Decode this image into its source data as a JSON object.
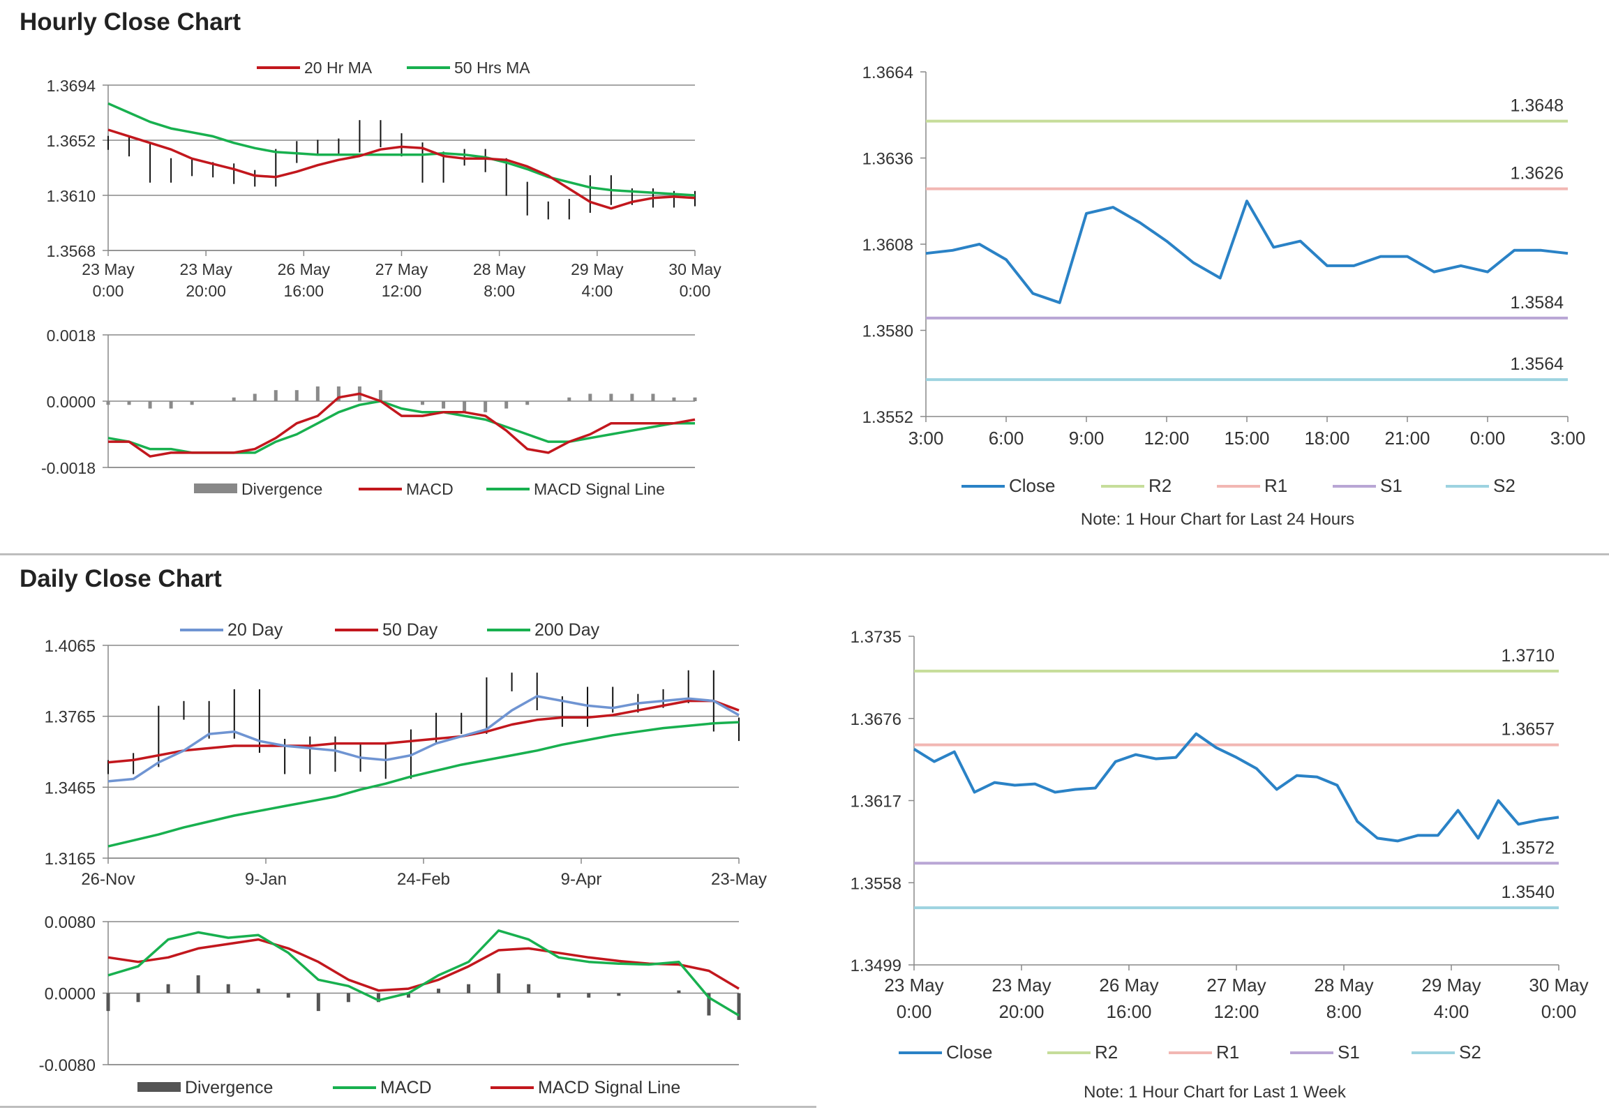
{
  "sections": {
    "hourly_title": "Hourly Close Chart",
    "daily_title": "Daily Close Chart"
  },
  "colors": {
    "close": "#2a82c6",
    "r2": "#c6dd9a",
    "r1": "#f2b7b3",
    "s1": "#b9a6d5",
    "s2": "#9dd3e0",
    "red": "#c2171d",
    "green": "#18b04f",
    "blue": "#6f94d2",
    "grid": "#888888"
  },
  "chart_data": [
    {
      "id": "hourly-price",
      "type": "line",
      "legend": [
        "20 Hr MA",
        "50 Hrs MA"
      ],
      "yticks": [
        "1.3694",
        "1.3652",
        "1.3610",
        "1.3568"
      ],
      "ylim": [
        1.3568,
        1.3694
      ],
      "xticks": [
        [
          "23 May",
          "0:00"
        ],
        [
          "23 May",
          "20:00"
        ],
        [
          "26 May",
          "16:00"
        ],
        [
          "27 May",
          "12:00"
        ],
        [
          "28 May",
          "8:00"
        ],
        [
          "29 May",
          "4:00"
        ],
        [
          "30 May",
          "0:00"
        ]
      ],
      "series": [
        {
          "name": "20 Hr MA",
          "color": "red",
          "values": [
            1.366,
            1.3655,
            1.365,
            1.3645,
            1.3638,
            1.3634,
            1.363,
            1.3625,
            1.3624,
            1.3628,
            1.3633,
            1.3637,
            1.364,
            1.3645,
            1.3647,
            1.3646,
            1.364,
            1.3638,
            1.3638,
            1.3637,
            1.3632,
            1.3625,
            1.3615,
            1.3605,
            1.36,
            1.3605,
            1.3608,
            1.3609,
            1.3608
          ]
        },
        {
          "name": "50 Hrs MA",
          "color": "green",
          "values": [
            1.368,
            1.3673,
            1.3666,
            1.3661,
            1.3658,
            1.3655,
            1.365,
            1.3646,
            1.3643,
            1.3642,
            1.3641,
            1.3641,
            1.3641,
            1.3641,
            1.3641,
            1.3641,
            1.3642,
            1.3641,
            1.3639,
            1.3635,
            1.363,
            1.3624,
            1.362,
            1.3616,
            1.3614,
            1.3613,
            1.3612,
            1.3611,
            1.361
          ]
        },
        {
          "name": "Close",
          "color": "black",
          "values": [
            1.365,
            1.3645,
            1.3625,
            1.3633,
            1.363,
            1.3629,
            1.3624,
            1.3622,
            1.364,
            1.3646,
            1.3647,
            1.3648,
            1.3662,
            1.3652,
            1.3645,
            1.3625,
            1.3638,
            1.364,
            1.3633,
            1.3615,
            1.36,
            1.3597,
            1.3602,
            1.362,
            1.3608,
            1.361,
            1.3606,
            1.3608,
            1.3607
          ]
        }
      ]
    },
    {
      "id": "hourly-macd",
      "type": "line",
      "legend": [
        "Divergence",
        "MACD",
        "MACD Signal Line"
      ],
      "yticks": [
        "0.0018",
        "0.0000",
        "-0.0018"
      ],
      "ylim": [
        -0.0018,
        0.0018
      ],
      "series": [
        {
          "name": "MACD",
          "color": "red",
          "values": [
            -0.0011,
            -0.0011,
            -0.0015,
            -0.0014,
            -0.0014,
            -0.0014,
            -0.0014,
            -0.0013,
            -0.001,
            -0.0006,
            -0.0004,
            0.0001,
            0.0002,
            0.0,
            -0.0004,
            -0.0004,
            -0.0003,
            -0.0003,
            -0.0004,
            -0.0008,
            -0.0013,
            -0.0014,
            -0.0011,
            -0.0009,
            -0.0006,
            -0.0006,
            -0.0006,
            -0.0006,
            -0.0005
          ]
        },
        {
          "name": "MACD Signal Line",
          "color": "green",
          "values": [
            -0.001,
            -0.0011,
            -0.0013,
            -0.0013,
            -0.0014,
            -0.0014,
            -0.0014,
            -0.0014,
            -0.0011,
            -0.0009,
            -0.0006,
            -0.0003,
            -0.0001,
            0.0,
            -0.0002,
            -0.0003,
            -0.0003,
            -0.0004,
            -0.0005,
            -0.0007,
            -0.0009,
            -0.0011,
            -0.0011,
            -0.001,
            -0.0009,
            -0.0008,
            -0.0007,
            -0.0006,
            -0.0006
          ]
        },
        {
          "name": "Divergence",
          "color": "gray",
          "values": [
            -0.0001,
            -0.0001,
            -0.0002,
            -0.0002,
            -0.0001,
            0.0,
            0.0001,
            0.0002,
            0.0003,
            0.0003,
            0.0004,
            0.0004,
            0.0004,
            0.0003,
            0.0,
            -0.0001,
            -0.0002,
            -0.0003,
            -0.0003,
            -0.0002,
            -0.0001,
            0.0,
            0.0001,
            0.0002,
            0.0002,
            0.0002,
            0.0002,
            0.0001,
            0.0001
          ]
        }
      ]
    },
    {
      "id": "hourly-pivot",
      "type": "line",
      "yticks": [
        "1.3664",
        "1.3636",
        "1.3608",
        "1.3580",
        "1.3552"
      ],
      "ylim": [
        1.3552,
        1.3664
      ],
      "xticks": [
        "3:00",
        "6:00",
        "9:00",
        "12:00",
        "15:00",
        "18:00",
        "21:00",
        "0:00",
        "3:00"
      ],
      "levels": [
        {
          "name": "R2",
          "value": 1.3648,
          "label": "1.3648"
        },
        {
          "name": "R1",
          "value": 1.3626,
          "label": "1.3626"
        },
        {
          "name": "S1",
          "value": 1.3584,
          "label": "1.3584"
        },
        {
          "name": "S2",
          "value": 1.3564,
          "label": "1.3564"
        }
      ],
      "series": [
        {
          "name": "Close",
          "color": "close",
          "values": [
            1.3605,
            1.3606,
            1.3608,
            1.3603,
            1.3592,
            1.3589,
            1.3618,
            1.362,
            1.3615,
            1.3609,
            1.3602,
            1.3597,
            1.3622,
            1.3607,
            1.3609,
            1.3601,
            1.3601,
            1.3604,
            1.3604,
            1.3599,
            1.3601,
            1.3599,
            1.3606,
            1.3606,
            1.3605
          ]
        }
      ],
      "legend": [
        "Close",
        "R2",
        "R1",
        "S1",
        "S2"
      ],
      "note": "Note: 1 Hour Chart for Last 24 Hours"
    },
    {
      "id": "daily-price",
      "type": "line",
      "legend": [
        "20 Day",
        "50 Day",
        "200 Day"
      ],
      "yticks": [
        "1.4065",
        "1.3765",
        "1.3465",
        "1.3165"
      ],
      "ylim": [
        1.3165,
        1.4065
      ],
      "xticks": [
        "26-Nov",
        "9-Jan",
        "24-Feb",
        "9-Apr",
        "23-May"
      ],
      "series": [
        {
          "name": "20 Day",
          "color": "blue",
          "values": [
            1.349,
            1.35,
            1.357,
            1.362,
            1.369,
            1.37,
            1.366,
            1.364,
            1.363,
            1.362,
            1.359,
            1.358,
            1.36,
            1.365,
            1.368,
            1.371,
            1.379,
            1.385,
            1.383,
            1.381,
            1.38,
            1.382,
            1.383,
            1.384,
            1.383,
            1.377
          ]
        },
        {
          "name": "50 Day",
          "color": "red",
          "values": [
            1.357,
            1.358,
            1.36,
            1.362,
            1.363,
            1.364,
            1.364,
            1.364,
            1.364,
            1.365,
            1.365,
            1.365,
            1.366,
            1.367,
            1.368,
            1.37,
            1.373,
            1.375,
            1.376,
            1.376,
            1.377,
            1.379,
            1.381,
            1.383,
            1.383,
            1.379
          ]
        },
        {
          "name": "200 Day",
          "color": "green",
          "values": [
            1.3215,
            1.324,
            1.3265,
            1.3295,
            1.332,
            1.3345,
            1.3365,
            1.3385,
            1.3405,
            1.3425,
            1.3455,
            1.348,
            1.351,
            1.3535,
            1.356,
            1.358,
            1.36,
            1.362,
            1.3645,
            1.3665,
            1.3685,
            1.37,
            1.3715,
            1.3725,
            1.3735,
            1.374
          ]
        },
        {
          "name": "Close",
          "color": "black",
          "values": [
            1.355,
            1.358,
            1.378,
            1.38,
            1.37,
            1.385,
            1.364,
            1.355,
            1.365,
            1.356,
            1.362,
            1.353,
            1.368,
            1.375,
            1.372,
            1.39,
            1.392,
            1.382,
            1.375,
            1.386,
            1.381,
            1.383,
            1.385,
            1.393,
            1.373,
            1.369
          ]
        }
      ]
    },
    {
      "id": "daily-macd",
      "type": "line",
      "legend": [
        "Divergence",
        "MACD",
        "MACD Signal Line"
      ],
      "yticks": [
        "0.0080",
        "0.0000",
        "-0.0080"
      ],
      "ylim": [
        -0.008,
        0.008
      ],
      "series": [
        {
          "name": "MACD",
          "color": "green",
          "values": [
            0.002,
            0.003,
            0.006,
            0.0068,
            0.0062,
            0.0065,
            0.0045,
            0.0015,
            0.0008,
            -0.0008,
            0.0,
            0.002,
            0.0035,
            0.007,
            0.006,
            0.004,
            0.0035,
            0.0033,
            0.0032,
            0.0035,
            -0.0005,
            -0.0025
          ]
        },
        {
          "name": "MACD Signal Line",
          "color": "red",
          "values": [
            0.004,
            0.0035,
            0.004,
            0.005,
            0.0055,
            0.006,
            0.005,
            0.0035,
            0.0015,
            0.0003,
            0.0005,
            0.0015,
            0.003,
            0.0048,
            0.005,
            0.0045,
            0.004,
            0.0036,
            0.0033,
            0.0032,
            0.0025,
            0.0005
          ]
        },
        {
          "name": "Divergence",
          "color": "darkgray",
          "values": [
            -0.002,
            -0.001,
            0.001,
            0.002,
            0.001,
            0.0005,
            -0.0005,
            -0.002,
            -0.001,
            -0.001,
            -0.0005,
            0.0005,
            0.001,
            0.0022,
            0.001,
            -0.0005,
            -0.0005,
            -0.0003,
            0.0,
            0.0003,
            -0.0025,
            -0.003
          ]
        }
      ]
    },
    {
      "id": "daily-pivot",
      "type": "line",
      "yticks": [
        "1.3735",
        "1.3676",
        "1.3617",
        "1.3558",
        "1.3499"
      ],
      "ylim": [
        1.3499,
        1.3735
      ],
      "xticks": [
        [
          "23 May",
          "0:00"
        ],
        [
          "23 May",
          "20:00"
        ],
        [
          "26 May",
          "16:00"
        ],
        [
          "27 May",
          "12:00"
        ],
        [
          "28 May",
          "8:00"
        ],
        [
          "29 May",
          "4:00"
        ],
        [
          "30 May",
          "0:00"
        ]
      ],
      "levels": [
        {
          "name": "R2",
          "value": 1.371,
          "label": "1.3710"
        },
        {
          "name": "R1",
          "value": 1.3657,
          "label": "1.3657"
        },
        {
          "name": "S1",
          "value": 1.3572,
          "label": "1.3572"
        },
        {
          "name": "S2",
          "value": 1.354,
          "label": "1.3540"
        }
      ],
      "series": [
        {
          "name": "Close",
          "color": "close",
          "values": [
            1.3654,
            1.3645,
            1.3652,
            1.3623,
            1.363,
            1.3628,
            1.3629,
            1.3623,
            1.3625,
            1.3626,
            1.3645,
            1.365,
            1.3647,
            1.3648,
            1.3665,
            1.3655,
            1.3648,
            1.364,
            1.3625,
            1.3635,
            1.3634,
            1.3628,
            1.3602,
            1.359,
            1.3588,
            1.3592,
            1.3592,
            1.361,
            1.359,
            1.3617,
            1.36,
            1.3603,
            1.3605
          ]
        }
      ],
      "legend": [
        "Close",
        "R2",
        "R1",
        "S1",
        "S2"
      ],
      "note": "Note: 1 Hour Chart for Last 1 Week"
    }
  ]
}
